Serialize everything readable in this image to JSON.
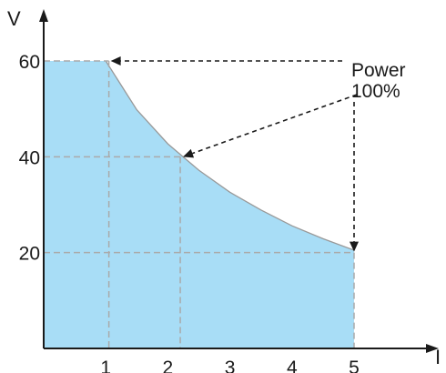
{
  "chart_data": {
    "type": "area",
    "xlabel": "I",
    "ylabel": "V",
    "xlim": [
      0,
      5.5
    ],
    "ylim": [
      0,
      65
    ],
    "x_ticks": [
      "1",
      "2",
      "3",
      "4",
      "5"
    ],
    "y_ticks": [
      "20",
      "40",
      "60"
    ],
    "grid": "dashed reference lines",
    "series": [
      {
        "points": [
          [
            0,
            60
          ],
          [
            1,
            60
          ],
          [
            1.5,
            49.8
          ],
          [
            2.0,
            42.7
          ],
          [
            2.5,
            37.2
          ],
          [
            3.0,
            32.6
          ],
          [
            3.5,
            28.9
          ],
          [
            4.0,
            25.6
          ],
          [
            4.5,
            22.9
          ],
          [
            5.0,
            20.5
          ],
          [
            5,
            0
          ],
          [
            0,
            0
          ]
        ]
      }
    ],
    "reference_points": [
      {
        "x": 1.05,
        "y": 60
      },
      {
        "x": 2.2,
        "y": 40
      },
      {
        "x": 5.0,
        "y": 20
      }
    ],
    "annotation": {
      "lines": [
        "Power",
        "100%"
      ]
    },
    "colors": {
      "fill": "#a8ddf6",
      "curve": "#999999",
      "dash": "#aaaaaa",
      "arrow": "#1a1a1a",
      "axis": "#1a1a1a"
    }
  }
}
